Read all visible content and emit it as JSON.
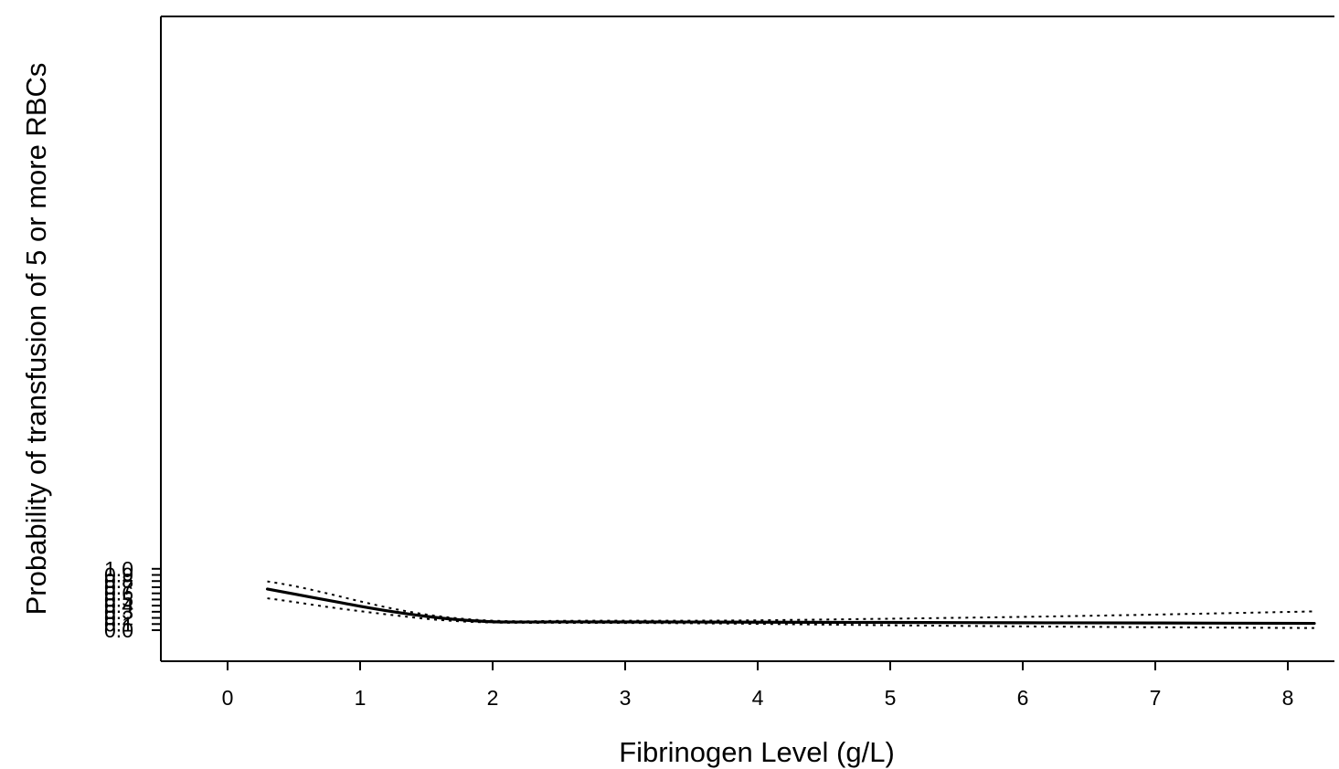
{
  "chart_data": {
    "type": "line",
    "title": "",
    "xlabel": "Fibrinogen Level (g/L)",
    "ylabel": "Probability of transfusion of 5 or more RBCs",
    "xlim": [
      -0.5,
      8.25
    ],
    "ylim": [
      -0.05,
      1.0
    ],
    "xticks": [
      0,
      1,
      2,
      3,
      4,
      5,
      6,
      7,
      8
    ],
    "yticks": [
      "0.0",
      "0.1",
      "0.2",
      "0.3",
      "0.4",
      "0.5",
      "0.6",
      "0.7",
      "0.8",
      "0.9",
      "1.0"
    ],
    "grid": false,
    "legend": "none",
    "series": [
      {
        "style": "solid",
        "color": "#000000",
        "x": [
          0.3,
          0.5,
          0.75,
          1.0,
          1.25,
          1.5,
          1.75,
          2.0,
          2.25,
          2.5,
          3.0,
          3.5,
          4.0,
          5.0,
          6.0,
          7.0,
          8.2
        ],
        "y": [
          0.67,
          0.59,
          0.49,
          0.39,
          0.3,
          0.225,
          0.17,
          0.138,
          0.133,
          0.135,
          0.134,
          0.133,
          0.13,
          0.126,
          0.121,
          0.117,
          0.111
        ]
      },
      {
        "style": "dotted",
        "color": "#000000",
        "x": [
          0.3,
          0.5,
          0.75,
          1.0,
          1.25,
          1.5,
          1.75,
          2.0,
          2.25,
          2.5,
          3.0,
          3.5,
          4.0,
          5.0,
          6.0,
          7.0,
          8.2
        ],
        "y": [
          0.795,
          0.72,
          0.6,
          0.47,
          0.35,
          0.255,
          0.19,
          0.155,
          0.145,
          0.152,
          0.155,
          0.155,
          0.161,
          0.187,
          0.217,
          0.254,
          0.306
        ]
      },
      {
        "style": "dotted",
        "color": "#000000",
        "x": [
          0.3,
          0.5,
          0.75,
          1.0,
          1.25,
          1.5,
          1.75,
          2.0,
          2.25,
          2.5,
          3.0,
          3.5,
          4.0,
          5.0,
          6.0,
          7.0,
          8.2
        ],
        "y": [
          0.52,
          0.46,
          0.38,
          0.31,
          0.245,
          0.185,
          0.145,
          0.125,
          0.12,
          0.12,
          0.118,
          0.113,
          0.103,
          0.08,
          0.062,
          0.048,
          0.035
        ]
      }
    ]
  }
}
